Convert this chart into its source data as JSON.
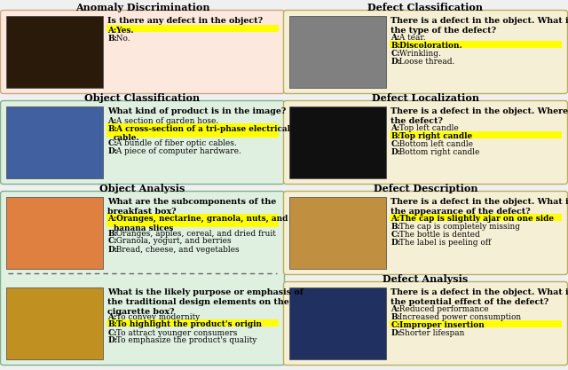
{
  "bg_color": "#f0f0f0",
  "highlight_color": "#ffff00",
  "panels": [
    {
      "key": "anomaly_disc",
      "title": "Anomaly Discrimination",
      "bg_color": "#fce8dc",
      "border_color": "#c8a888",
      "col": 0,
      "row": 0,
      "img_color": "#2a1a0a",
      "question": "Is there any defect in the object?",
      "answers": [
        {
          "label": "A",
          "text": "Yes.",
          "bold": true,
          "highlight": true
        },
        {
          "label": "B",
          "text": "No.",
          "bold": false,
          "highlight": false
        }
      ]
    },
    {
      "key": "defect_class",
      "title": "Defect Classification",
      "bg_color": "#f5f0d5",
      "border_color": "#b8b060",
      "col": 1,
      "row": 0,
      "img_color": "#808080",
      "question": "There is a defect in the object. What is\nthe type of the defect?",
      "answers": [
        {
          "label": "A",
          "text": "A tear.",
          "bold": false,
          "highlight": false
        },
        {
          "label": "B",
          "text": "Discoloration.",
          "bold": true,
          "highlight": true
        },
        {
          "label": "C",
          "text": "Wrinkling.",
          "bold": false,
          "highlight": false
        },
        {
          "label": "D",
          "text": "Loose thread.",
          "bold": false,
          "highlight": false
        }
      ]
    },
    {
      "key": "obj_class",
      "title": "Object Classification",
      "bg_color": "#dff0e0",
      "border_color": "#80b090",
      "col": 0,
      "row": 1,
      "img_color": "#4060a0",
      "question": "What kind of product is in the image?",
      "answers": [
        {
          "label": "A",
          "text": "A section of garden hose.",
          "bold": false,
          "highlight": false
        },
        {
          "label": "B",
          "text": "A cross-section of a tri-phase electrical\ncable.",
          "bold": true,
          "highlight": true
        },
        {
          "label": "C",
          "text": "A bundle of fiber optic cables.",
          "bold": false,
          "highlight": false
        },
        {
          "label": "D",
          "text": "A piece of computer hardware.",
          "bold": false,
          "highlight": false
        }
      ]
    },
    {
      "key": "defect_loc",
      "title": "Defect Localization",
      "bg_color": "#f5f0d5",
      "border_color": "#b8b060",
      "col": 1,
      "row": 1,
      "img_color": "#101010",
      "question": "There is a defect in the object. Where is\nthe defect?",
      "answers": [
        {
          "label": "A",
          "text": "Top left candle",
          "bold": false,
          "highlight": false
        },
        {
          "label": "B",
          "text": "Top right candle",
          "bold": true,
          "highlight": true
        },
        {
          "label": "C",
          "text": "Bottom left candle",
          "bold": false,
          "highlight": false
        },
        {
          "label": "D",
          "text": "Bottom right candle",
          "bold": false,
          "highlight": false
        }
      ]
    },
    {
      "key": "obj_analysis_top",
      "title": "Object Analysis",
      "bg_color": "#dff0e0",
      "border_color": "#80b090",
      "col": 0,
      "row": 2,
      "img_color": "#e08040",
      "question": "What are the subcomponents of the\nbreakfast box?",
      "answers": [
        {
          "label": "A",
          "text": "Oranges, nectarine, granola, nuts, and\nbanana slices",
          "bold": true,
          "highlight": true
        },
        {
          "label": "B",
          "text": "Oranges, apples, cereal, and dried fruit",
          "bold": false,
          "highlight": false
        },
        {
          "label": "C",
          "text": "Granola, yogurt, and berries",
          "bold": false,
          "highlight": false
        },
        {
          "label": "D",
          "text": "Bread, cheese, and vegetables",
          "bold": false,
          "highlight": false
        }
      ]
    },
    {
      "key": "obj_analysis_bot",
      "title": "",
      "bg_color": "#dff0e0",
      "border_color": "#80b090",
      "col": 0,
      "row": 3,
      "img_color": "#c09020",
      "question": "What is the likely purpose or emphasis of\nthe traditional design elements on the\ncigarette box?",
      "answers": [
        {
          "label": "A",
          "text": "To convey modernity",
          "bold": false,
          "highlight": false
        },
        {
          "label": "B",
          "text": "To highlight the product's origin",
          "bold": true,
          "highlight": true
        },
        {
          "label": "C",
          "text": "To attract younger consumers",
          "bold": false,
          "highlight": false
        },
        {
          "label": "D",
          "text": "To emphasize the product's quality",
          "bold": false,
          "highlight": false
        }
      ]
    },
    {
      "key": "defect_desc",
      "title": "Defect Description",
      "bg_color": "#f5f0d5",
      "border_color": "#b8b060",
      "col": 1,
      "row": 2,
      "img_color": "#c09040",
      "question": "There is a defect in the object. What is\nthe appearance of the defect?",
      "answers": [
        {
          "label": "A",
          "text": "The cap is slightly ajar on one side",
          "bold": true,
          "highlight": true
        },
        {
          "label": "B",
          "text": "The cap is completely missing",
          "bold": false,
          "highlight": false
        },
        {
          "label": "C",
          "text": "The bottle is dented",
          "bold": false,
          "highlight": false
        },
        {
          "label": "D",
          "text": "The label is peeling off",
          "bold": false,
          "highlight": false
        }
      ]
    },
    {
      "key": "defect_anal",
      "title": "Defect Analysis",
      "bg_color": "#f5f0d5",
      "border_color": "#b8b060",
      "col": 1,
      "row": 3,
      "img_color": "#203060",
      "question": "There is a defect in the object. What is\nthe potential effect of the defect?",
      "answers": [
        {
          "label": "A",
          "text": "Reduced performance",
          "bold": false,
          "highlight": false
        },
        {
          "label": "B",
          "text": "Increased power consumption",
          "bold": false,
          "highlight": false
        },
        {
          "label": "C",
          "text": "Improper insertion",
          "bold": true,
          "highlight": true
        },
        {
          "label": "D",
          "text": "Shorter lifespan",
          "bold": false,
          "highlight": false
        }
      ]
    }
  ]
}
